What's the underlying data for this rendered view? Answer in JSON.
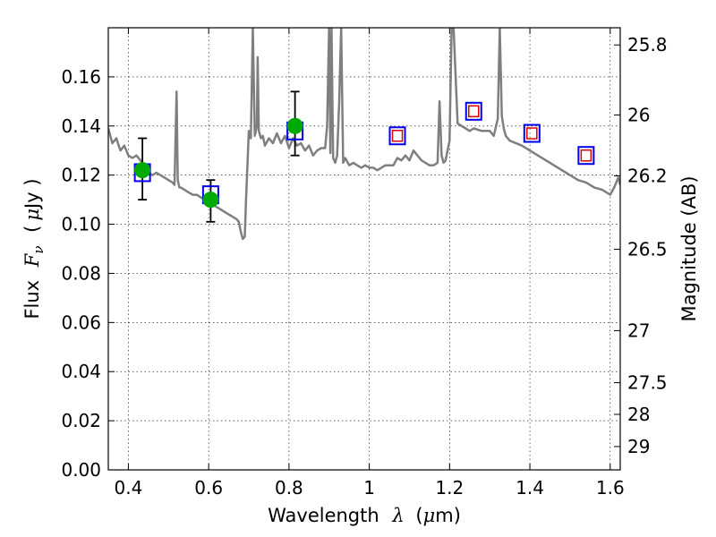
{
  "chart_data": {
    "type": "scatter",
    "title": "",
    "xlabel": {
      "prefix": "Wavelength",
      "symbol": "λ",
      "unit_open": "(",
      "unit_mu": "μ",
      "unit": "m)"
    },
    "ylabel": {
      "prefix": "Flux",
      "symbol": "F",
      "subscript": "ν",
      "unit_open": "(",
      "unit_mu": "μ",
      "unit": "Jy )"
    },
    "y2label": "Magnitude (AB)",
    "xlim": [
      0.35,
      1.625
    ],
    "ylim": [
      0.0,
      0.18
    ],
    "grid": true,
    "x_ticks": [
      {
        "value": 0.4,
        "label": "0.4"
      },
      {
        "value": 0.6,
        "label": "0.6"
      },
      {
        "value": 0.8,
        "label": "0.8"
      },
      {
        "value": 1.0,
        "label": "1"
      },
      {
        "value": 1.2,
        "label": "1.2"
      },
      {
        "value": 1.4,
        "label": "1.4"
      },
      {
        "value": 1.6,
        "label": "1.6"
      }
    ],
    "y_ticks": [
      {
        "value": 0.0,
        "label": "0.00"
      },
      {
        "value": 0.02,
        "label": "0.02"
      },
      {
        "value": 0.04,
        "label": "0.04"
      },
      {
        "value": 0.06,
        "label": "0.06"
      },
      {
        "value": 0.08,
        "label": "0.08"
      },
      {
        "value": 0.1,
        "label": "0.10"
      },
      {
        "value": 0.12,
        "label": "0.12"
      },
      {
        "value": 0.14,
        "label": "0.14"
      },
      {
        "value": 0.16,
        "label": "0.16"
      }
    ],
    "y2_ticks": [
      {
        "label": "25.8",
        "flux": 0.173
      },
      {
        "label": "26",
        "flux": 0.1445
      },
      {
        "label": "26.2",
        "flux": 0.1197
      },
      {
        "label": "26.5",
        "flux": 0.0898
      },
      {
        "label": "27",
        "flux": 0.0567
      },
      {
        "label": "27.5",
        "flux": 0.0355
      },
      {
        "label": "28",
        "flux": 0.0226
      },
      {
        "label": "29",
        "flux": 0.0095
      }
    ],
    "spectrum": {
      "color": "#7f7f7f",
      "x": [
        0.35,
        0.36,
        0.37,
        0.38,
        0.39,
        0.4,
        0.41,
        0.42,
        0.43,
        0.44,
        0.45,
        0.46,
        0.47,
        0.48,
        0.49,
        0.5,
        0.51,
        0.515,
        0.52,
        0.523,
        0.527,
        0.53,
        0.54,
        0.55,
        0.56,
        0.57,
        0.58,
        0.59,
        0.6,
        0.61,
        0.62,
        0.63,
        0.64,
        0.65,
        0.66,
        0.67,
        0.675,
        0.68,
        0.685,
        0.69,
        0.693,
        0.697,
        0.7,
        0.705,
        0.71,
        0.715,
        0.72,
        0.722,
        0.725,
        0.73,
        0.735,
        0.74,
        0.75,
        0.76,
        0.77,
        0.78,
        0.79,
        0.8,
        0.81,
        0.82,
        0.83,
        0.84,
        0.85,
        0.86,
        0.87,
        0.88,
        0.89,
        0.895,
        0.9,
        0.903,
        0.906,
        0.91,
        0.915,
        0.92,
        0.925,
        0.93,
        0.935,
        0.94,
        0.95,
        0.96,
        0.97,
        0.98,
        0.99,
        1.0,
        1.01,
        1.02,
        1.03,
        1.04,
        1.05,
        1.06,
        1.07,
        1.08,
        1.09,
        1.1,
        1.11,
        1.12,
        1.13,
        1.14,
        1.15,
        1.16,
        1.17,
        1.175,
        1.18,
        1.185,
        1.19,
        1.2,
        1.205,
        1.21,
        1.22,
        1.25,
        1.26,
        1.28,
        1.3,
        1.31,
        1.32,
        1.325,
        1.33,
        1.335,
        1.34,
        1.35,
        1.38,
        1.4,
        1.42,
        1.44,
        1.46,
        1.48,
        1.5,
        1.52,
        1.54,
        1.56,
        1.58,
        1.6,
        1.61,
        1.62,
        1.625
      ],
      "y": [
        0.139,
        0.133,
        0.135,
        0.13,
        0.132,
        0.128,
        0.127,
        0.128,
        0.126,
        0.124,
        0.121,
        0.12,
        0.121,
        0.12,
        0.119,
        0.118,
        0.117,
        0.116,
        0.154,
        0.118,
        0.115,
        0.115,
        0.114,
        0.113,
        0.112,
        0.112,
        0.111,
        0.11,
        0.109,
        0.108,
        0.107,
        0.106,
        0.105,
        0.104,
        0.103,
        0.102,
        0.101,
        0.097,
        0.094,
        0.095,
        0.11,
        0.126,
        0.138,
        0.135,
        0.18,
        0.136,
        0.14,
        0.168,
        0.138,
        0.135,
        0.136,
        0.132,
        0.135,
        0.133,
        0.137,
        0.133,
        0.136,
        0.131,
        0.135,
        0.132,
        0.133,
        0.13,
        0.132,
        0.128,
        0.13,
        0.131,
        0.131,
        0.14,
        0.18,
        0.129,
        0.18,
        0.127,
        0.125,
        0.128,
        0.15,
        0.18,
        0.125,
        0.127,
        0.124,
        0.125,
        0.124,
        0.123,
        0.124,
        0.123,
        0.123,
        0.122,
        0.123,
        0.124,
        0.124,
        0.124,
        0.127,
        0.126,
        0.128,
        0.126,
        0.13,
        0.128,
        0.126,
        0.125,
        0.124,
        0.124,
        0.125,
        0.15,
        0.128,
        0.125,
        0.126,
        0.134,
        0.18,
        0.18,
        0.141,
        0.138,
        0.139,
        0.138,
        0.138,
        0.136,
        0.143,
        0.18,
        0.144,
        0.139,
        0.136,
        0.134,
        0.132,
        0.13,
        0.128,
        0.126,
        0.124,
        0.122,
        0.12,
        0.118,
        0.117,
        0.115,
        0.114,
        0.112,
        0.115,
        0.119,
        0.116
      ]
    },
    "series": [
      {
        "marker": "circle",
        "color": "#00aa00",
        "x": [
          0.435,
          0.605,
          0.815
        ],
        "y": [
          0.122,
          0.11,
          0.14
        ],
        "yerr_low": [
          0.11,
          0.101,
          0.128
        ],
        "yerr_high": [
          0.135,
          0.118,
          0.154
        ]
      },
      {
        "marker": "square-outline",
        "color": "#0000ee",
        "x": [
          0.435,
          0.605,
          0.815,
          1.07,
          1.26,
          1.405,
          1.54
        ],
        "y": [
          0.121,
          0.112,
          0.138,
          0.136,
          0.146,
          0.137,
          0.128
        ]
      },
      {
        "marker": "square-outline-small",
        "color": "#dd0000",
        "x": [
          1.07,
          1.26,
          1.405,
          1.54
        ],
        "y": [
          0.136,
          0.146,
          0.137,
          0.128
        ]
      }
    ]
  }
}
